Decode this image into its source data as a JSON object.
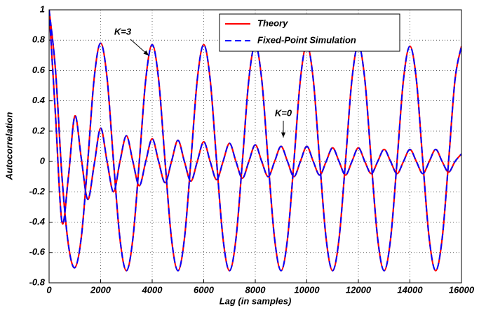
{
  "chart_data": {
    "type": "line",
    "xlabel": "Lag (in samples)",
    "ylabel": "Autocorrelation",
    "x": [
      0,
      250,
      500,
      750,
      1000,
      1250,
      1500,
      1750,
      2000,
      2250,
      2500,
      2750,
      3000,
      3250,
      3500,
      3750,
      4000,
      4250,
      4500,
      4750,
      5000,
      5250,
      5500,
      5750,
      6000,
      6250,
      6500,
      6750,
      7000,
      7250,
      7500,
      7750,
      8000,
      8250,
      8500,
      8750,
      9000,
      9250,
      9500,
      9750,
      10000,
      10250,
      10500,
      10750,
      11000,
      11250,
      11500,
      11750,
      12000,
      12250,
      12500,
      12750,
      13000,
      13250,
      13500,
      13750,
      14000,
      14250,
      14500,
      14750,
      15000,
      15250,
      15500,
      15750,
      16000
    ],
    "series": [
      {
        "name": "Theory",
        "color": "#ff0000",
        "dashed": false,
        "values": [
          [
            1.0,
            0.6,
            -0.1,
            -0.55,
            -0.7,
            -0.5,
            0.0,
            0.55,
            0.78,
            0.55,
            0.0,
            -0.51,
            -0.72,
            -0.51,
            0.0,
            0.54,
            0.77,
            0.54,
            0.0,
            -0.51,
            -0.72,
            -0.51,
            0.0,
            0.54,
            0.77,
            0.54,
            0.0,
            -0.51,
            -0.72,
            -0.51,
            0.0,
            0.54,
            0.77,
            0.54,
            0.0,
            -0.51,
            -0.72,
            -0.51,
            0.0,
            0.54,
            0.77,
            0.54,
            0.0,
            -0.51,
            -0.72,
            -0.51,
            0.0,
            0.54,
            0.77,
            0.54,
            0.0,
            -0.51,
            -0.72,
            -0.51,
            0.0,
            0.54,
            0.76,
            0.54,
            0.0,
            -0.51,
            -0.72,
            -0.51,
            0.0,
            0.54,
            0.76
          ],
          [
            1.0,
            0.3,
            -0.4,
            -0.1,
            0.3,
            0.02,
            -0.25,
            -0.02,
            0.22,
            0.0,
            -0.2,
            0.0,
            0.17,
            0.0,
            -0.16,
            0.0,
            0.15,
            0.0,
            -0.14,
            0.0,
            0.14,
            0.0,
            -0.13,
            0.0,
            0.13,
            0.0,
            -0.12,
            0.0,
            0.12,
            0.0,
            -0.11,
            0.0,
            0.11,
            0.0,
            -0.1,
            0.0,
            0.1,
            0.0,
            -0.1,
            0.0,
            0.1,
            0.0,
            -0.09,
            0.0,
            0.09,
            0.0,
            -0.09,
            0.0,
            0.09,
            0.0,
            -0.08,
            0.0,
            0.08,
            0.0,
            -0.08,
            0.0,
            0.08,
            0.0,
            -0.08,
            0.0,
            0.08,
            0.0,
            -0.07,
            0.0,
            0.05
          ]
        ]
      },
      {
        "name": "Fixed-Point Simulation",
        "color": "#0000ff",
        "dashed": true,
        "values": [
          [
            1.0,
            0.6,
            -0.1,
            -0.55,
            -0.7,
            -0.5,
            0.0,
            0.55,
            0.78,
            0.55,
            0.0,
            -0.51,
            -0.72,
            -0.51,
            0.0,
            0.54,
            0.77,
            0.54,
            0.0,
            -0.51,
            -0.72,
            -0.51,
            0.0,
            0.54,
            0.77,
            0.54,
            0.0,
            -0.51,
            -0.72,
            -0.51,
            0.0,
            0.54,
            0.77,
            0.54,
            0.0,
            -0.51,
            -0.72,
            -0.51,
            0.0,
            0.54,
            0.77,
            0.54,
            0.0,
            -0.51,
            -0.72,
            -0.51,
            0.0,
            0.54,
            0.77,
            0.54,
            0.0,
            -0.51,
            -0.72,
            -0.51,
            0.0,
            0.54,
            0.76,
            0.54,
            0.0,
            -0.51,
            -0.72,
            -0.51,
            0.0,
            0.54,
            0.76
          ],
          [
            1.0,
            0.3,
            -0.4,
            -0.1,
            0.3,
            0.02,
            -0.25,
            -0.02,
            0.22,
            0.0,
            -0.2,
            0.0,
            0.17,
            0.0,
            -0.16,
            0.0,
            0.15,
            0.0,
            -0.14,
            0.0,
            0.14,
            0.0,
            -0.13,
            0.0,
            0.13,
            0.0,
            -0.12,
            0.0,
            0.12,
            0.0,
            -0.11,
            0.0,
            0.11,
            0.0,
            -0.1,
            0.0,
            0.1,
            0.0,
            -0.1,
            0.0,
            0.1,
            0.0,
            -0.09,
            0.0,
            0.09,
            0.0,
            -0.09,
            0.0,
            0.09,
            0.0,
            -0.08,
            0.0,
            0.08,
            0.0,
            -0.08,
            0.0,
            0.08,
            0.0,
            -0.08,
            0.0,
            0.08,
            0.0,
            -0.07,
            0.0,
            0.05
          ]
        ]
      }
    ],
    "annotations": [
      "K=3",
      "K=0"
    ],
    "xlim": [
      0,
      16000
    ],
    "xticks": [
      0,
      2000,
      4000,
      6000,
      8000,
      10000,
      12000,
      14000,
      16000
    ],
    "ylim": [
      -0.8,
      1
    ],
    "yticks": [
      -0.8,
      -0.6,
      -0.4,
      -0.2,
      0,
      0.2,
      0.4,
      0.6,
      0.8,
      1
    ],
    "grid": true,
    "legend": "upper right"
  }
}
